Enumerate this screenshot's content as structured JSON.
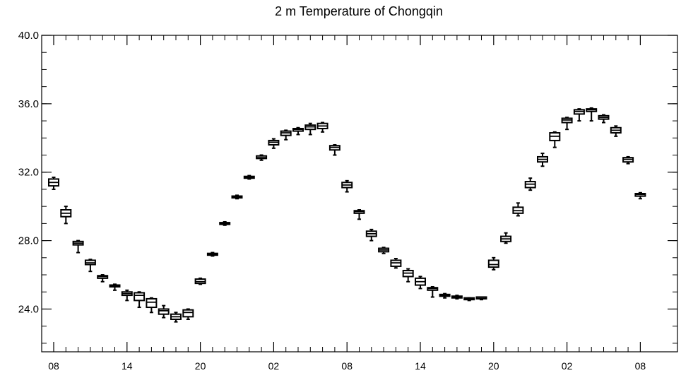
{
  "chart_data": {
    "type": "boxplot",
    "title": "2 m Temperature of Chongqin",
    "xlabel": "",
    "ylabel": "",
    "ylim": [
      21.5,
      40.0
    ],
    "y_ticks": [
      24.0,
      28.0,
      32.0,
      36.0,
      40.0
    ],
    "y_tick_labels": [
      "24.0",
      "28.0",
      "32.0",
      "36.0",
      "40.0"
    ],
    "x_tick_labels": [
      "08",
      "14",
      "20",
      "02",
      "08",
      "14",
      "20",
      "02",
      "08"
    ],
    "x_tick_hours": [
      0,
      6,
      12,
      18,
      24,
      30,
      36,
      42,
      48
    ],
    "grid": false,
    "boxes": [
      {
        "hour": 0,
        "min": 31.0,
        "q1": 31.2,
        "median": 31.4,
        "q3": 31.6,
        "max": 31.7
      },
      {
        "hour": 1,
        "min": 29.0,
        "q1": 29.4,
        "median": 29.6,
        "q3": 29.8,
        "max": 30.0
      },
      {
        "hour": 2,
        "min": 27.3,
        "q1": 27.75,
        "median": 27.85,
        "q3": 27.95,
        "max": 28.0
      },
      {
        "hour": 3,
        "min": 26.2,
        "q1": 26.6,
        "median": 26.7,
        "q3": 26.85,
        "max": 26.9
      },
      {
        "hour": 4,
        "min": 25.6,
        "q1": 25.8,
        "median": 25.9,
        "q3": 25.95,
        "max": 26.0
      },
      {
        "hour": 5,
        "min": 25.1,
        "q1": 25.3,
        "median": 25.35,
        "q3": 25.4,
        "max": 25.45
      },
      {
        "hour": 6,
        "min": 24.5,
        "q1": 24.8,
        "median": 24.9,
        "q3": 25.0,
        "max": 25.1
      },
      {
        "hour": 7,
        "min": 24.1,
        "q1": 24.5,
        "median": 24.8,
        "q3": 24.95,
        "max": 25.0
      },
      {
        "hour": 8,
        "min": 23.8,
        "q1": 24.1,
        "median": 24.4,
        "q3": 24.6,
        "max": 24.65
      },
      {
        "hour": 9,
        "min": 23.5,
        "q1": 23.7,
        "median": 23.9,
        "q3": 24.0,
        "max": 24.2
      },
      {
        "hour": 10,
        "min": 23.25,
        "q1": 23.4,
        "median": 23.55,
        "q3": 23.7,
        "max": 23.8
      },
      {
        "hour": 11,
        "min": 23.4,
        "q1": 23.55,
        "median": 23.8,
        "q3": 23.95,
        "max": 24.0
      },
      {
        "hour": 12,
        "min": 25.45,
        "q1": 25.5,
        "median": 25.6,
        "q3": 25.75,
        "max": 25.8
      },
      {
        "hour": 13,
        "min": 27.1,
        "q1": 27.15,
        "median": 27.2,
        "q3": 27.25,
        "max": 27.3
      },
      {
        "hour": 14,
        "min": 28.9,
        "q1": 28.95,
        "median": 29.0,
        "q3": 29.05,
        "max": 29.1
      },
      {
        "hour": 15,
        "min": 30.45,
        "q1": 30.5,
        "median": 30.55,
        "q3": 30.6,
        "max": 30.65
      },
      {
        "hour": 16,
        "min": 31.6,
        "q1": 31.65,
        "median": 31.7,
        "q3": 31.75,
        "max": 31.8
      },
      {
        "hour": 17,
        "min": 32.7,
        "q1": 32.8,
        "median": 32.85,
        "q3": 32.95,
        "max": 33.0
      },
      {
        "hour": 18,
        "min": 33.4,
        "q1": 33.6,
        "median": 33.75,
        "q3": 33.85,
        "max": 33.95
      },
      {
        "hour": 19,
        "min": 33.9,
        "q1": 34.15,
        "median": 34.3,
        "q3": 34.4,
        "max": 34.45
      },
      {
        "hour": 20,
        "min": 34.2,
        "q1": 34.4,
        "median": 34.5,
        "q3": 34.55,
        "max": 34.6
      },
      {
        "hour": 21,
        "min": 34.2,
        "q1": 34.5,
        "median": 34.65,
        "q3": 34.75,
        "max": 34.85
      },
      {
        "hour": 22,
        "min": 34.35,
        "q1": 34.55,
        "median": 34.7,
        "q3": 34.85,
        "max": 34.9
      },
      {
        "hour": 23,
        "min": 33.0,
        "q1": 33.3,
        "median": 33.45,
        "q3": 33.55,
        "max": 33.6
      },
      {
        "hour": 24,
        "min": 30.85,
        "q1": 31.1,
        "median": 31.25,
        "q3": 31.4,
        "max": 31.5
      },
      {
        "hour": 25,
        "min": 29.25,
        "q1": 29.6,
        "median": 29.7,
        "q3": 29.75,
        "max": 29.8
      },
      {
        "hour": 26,
        "min": 28.0,
        "q1": 28.25,
        "median": 28.4,
        "q3": 28.55,
        "max": 28.65
      },
      {
        "hour": 27,
        "min": 27.25,
        "q1": 27.35,
        "median": 27.45,
        "q3": 27.55,
        "max": 27.6
      },
      {
        "hour": 28,
        "min": 26.4,
        "q1": 26.5,
        "median": 26.7,
        "q3": 26.85,
        "max": 26.95
      },
      {
        "hour": 29,
        "min": 25.6,
        "q1": 25.9,
        "median": 26.1,
        "q3": 26.25,
        "max": 26.35
      },
      {
        "hour": 30,
        "min": 25.2,
        "q1": 25.4,
        "median": 25.6,
        "q3": 25.8,
        "max": 25.9
      },
      {
        "hour": 31,
        "min": 24.7,
        "q1": 25.1,
        "median": 25.2,
        "q3": 25.25,
        "max": 25.3
      },
      {
        "hour": 32,
        "min": 24.65,
        "q1": 24.75,
        "median": 24.8,
        "q3": 24.85,
        "max": 24.9
      },
      {
        "hour": 33,
        "min": 24.6,
        "q1": 24.65,
        "median": 24.7,
        "q3": 24.75,
        "max": 24.8
      },
      {
        "hour": 34,
        "min": 24.5,
        "q1": 24.55,
        "median": 24.6,
        "q3": 24.62,
        "max": 24.65
      },
      {
        "hour": 35,
        "min": 24.55,
        "q1": 24.6,
        "median": 24.62,
        "q3": 24.65,
        "max": 24.68
      },
      {
        "hour": 36,
        "min": 26.3,
        "q1": 26.45,
        "median": 26.6,
        "q3": 26.85,
        "max": 27.0
      },
      {
        "hour": 37,
        "min": 27.85,
        "q1": 27.95,
        "median": 28.1,
        "q3": 28.25,
        "max": 28.45
      },
      {
        "hour": 38,
        "min": 29.45,
        "q1": 29.6,
        "median": 29.75,
        "q3": 29.95,
        "max": 30.2
      },
      {
        "hour": 39,
        "min": 30.95,
        "q1": 31.1,
        "median": 31.3,
        "q3": 31.45,
        "max": 31.65
      },
      {
        "hour": 40,
        "min": 32.35,
        "q1": 32.6,
        "median": 32.75,
        "q3": 32.9,
        "max": 33.1
      },
      {
        "hour": 41,
        "min": 33.45,
        "q1": 33.85,
        "median": 34.1,
        "q3": 34.3,
        "max": 34.35
      },
      {
        "hour": 42,
        "min": 34.5,
        "q1": 34.9,
        "median": 35.05,
        "q3": 35.15,
        "max": 35.2
      },
      {
        "hour": 43,
        "min": 35.0,
        "q1": 35.4,
        "median": 35.55,
        "q3": 35.65,
        "max": 35.7
      },
      {
        "hour": 44,
        "min": 35.0,
        "q1": 35.55,
        "median": 35.65,
        "q3": 35.7,
        "max": 35.75
      },
      {
        "hour": 45,
        "min": 34.9,
        "q1": 35.1,
        "median": 35.2,
        "q3": 35.3,
        "max": 35.35
      },
      {
        "hour": 46,
        "min": 34.1,
        "q1": 34.3,
        "median": 34.45,
        "q3": 34.6,
        "max": 34.7
      },
      {
        "hour": 47,
        "min": 32.5,
        "q1": 32.6,
        "median": 32.75,
        "q3": 32.85,
        "max": 32.9
      },
      {
        "hour": 48,
        "min": 30.45,
        "q1": 30.6,
        "median": 30.7,
        "q3": 30.75,
        "max": 30.8
      }
    ]
  }
}
